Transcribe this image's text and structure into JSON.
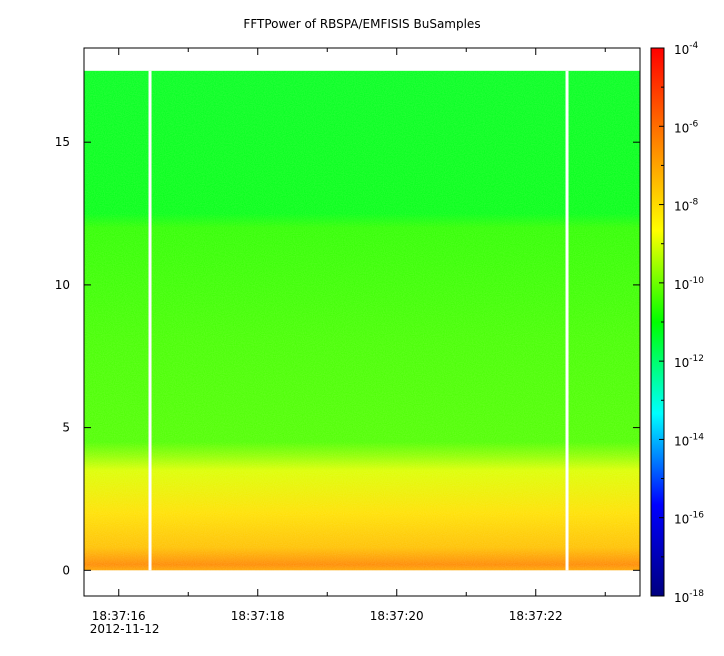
{
  "chart_data": {
    "type": "heatmap",
    "title": "FFTPower of RBSPA/EMFISIS  BuSamples",
    "xlabel": "",
    "ylabel": "",
    "x_axis": {
      "type": "time",
      "date": "2012-11-12",
      "start": "18:37:15.5",
      "end": "18:37:23.5",
      "major_ticks": [
        "18:37:16",
        "18:37:18",
        "18:37:20",
        "18:37:22"
      ],
      "major_tick_seconds": [
        16,
        18,
        20,
        22
      ],
      "minor_tick_seconds": [
        17,
        19,
        21,
        23
      ],
      "range_seconds": [
        15.5,
        23.5
      ]
    },
    "y_axis": {
      "ticks": [
        0,
        5,
        10,
        15
      ],
      "ylim": [
        -0.9,
        18.3
      ]
    },
    "data_extent": {
      "y": [
        0,
        17.5
      ],
      "x_seconds": [
        15.5,
        23.5
      ]
    },
    "gaps_seconds": [
      16.45,
      22.45
    ],
    "colorbar": {
      "scale": "log",
      "range": [
        1e-18,
        0.0001
      ],
      "tick_exponents": [
        -4,
        -6,
        -8,
        -10,
        -12,
        -14,
        -16,
        -18
      ],
      "tick_base": "10",
      "colormap": [
        "#00007f",
        "#0000ff",
        "#00ffff",
        "#00ff00",
        "#ffff00",
        "#ff7f00",
        "#ff0000"
      ]
    },
    "power_profile_log10": [
      {
        "y": 0.0,
        "value": -7.0
      },
      {
        "y": 0.2,
        "value": -6.5
      },
      {
        "y": 0.8,
        "value": -7.5
      },
      {
        "y": 2.0,
        "value": -8.1
      },
      {
        "y": 3.5,
        "value": -9.0
      },
      {
        "y": 4.0,
        "value": -9.7
      },
      {
        "y": 4.5,
        "value": -10.3
      },
      {
        "y": 8.0,
        "value": -10.4
      },
      {
        "y": 12.0,
        "value": -10.6
      },
      {
        "y": 12.5,
        "value": -11.2
      },
      {
        "y": 17.5,
        "value": -11.3
      }
    ],
    "annotations": []
  }
}
